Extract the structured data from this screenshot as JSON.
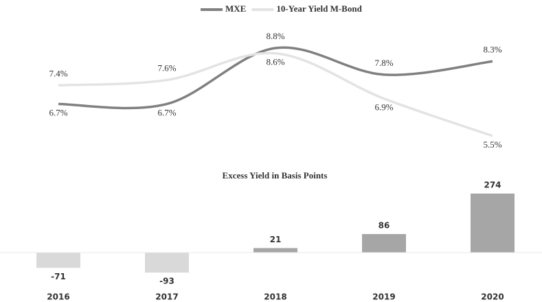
{
  "chart_data": [
    {
      "type": "line",
      "categories": [
        "2016",
        "2017",
        "2018",
        "2019",
        "2020"
      ],
      "series": [
        {
          "name": "MXE",
          "color": "#808080",
          "values": [
            6.7,
            6.7,
            8.8,
            7.8,
            8.3
          ],
          "value_labels": [
            "6.7%",
            "6.7%",
            "8.8%",
            "7.8%",
            "8.3%"
          ]
        },
        {
          "name": "10-Year Yield M-Bond",
          "color": "#e3e3e3",
          "values": [
            7.4,
            7.6,
            8.6,
            6.9,
            5.5
          ],
          "value_labels": [
            "7.4%",
            "7.6%",
            "8.6%",
            "6.9%",
            "5.5%"
          ]
        }
      ],
      "legend": "top"
    },
    {
      "type": "bar",
      "title": "Excess Yield in Basis Points",
      "categories": [
        "2016",
        "2017",
        "2018",
        "2019",
        "2020"
      ],
      "values": [
        -71,
        -93,
        21,
        86,
        274
      ],
      "colors": [
        "#d9d9d9",
        "#d9d9d9",
        "#a6a6a6",
        "#a6a6a6",
        "#a6a6a6"
      ]
    }
  ]
}
